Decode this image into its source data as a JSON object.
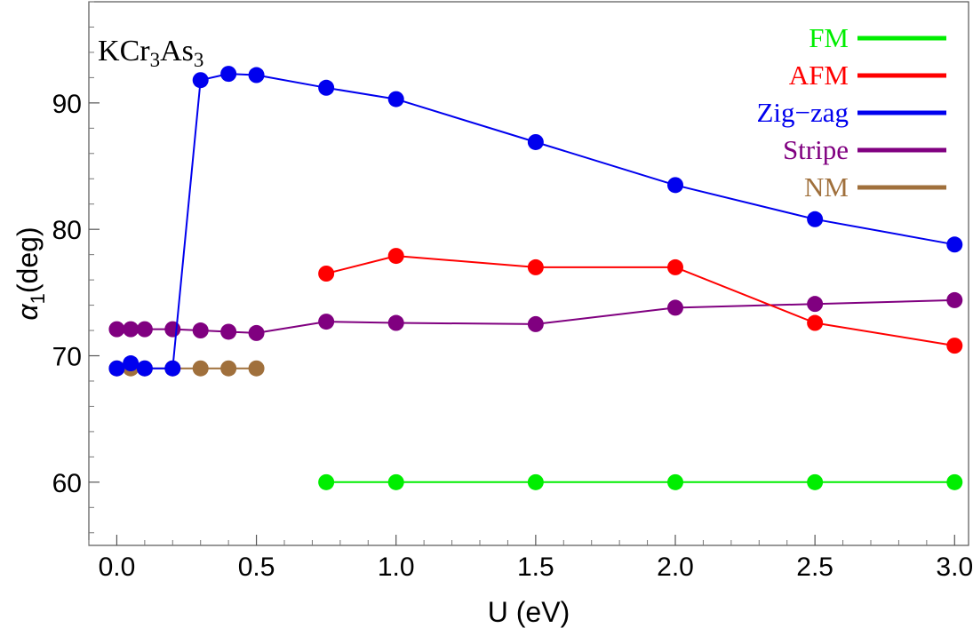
{
  "chart_data": {
    "type": "line",
    "title": "",
    "xlabel": "U (eV)",
    "ylabel": "α",
    "ylabel_sub": "1",
    "ylabel_unit": "(deg)",
    "xlim": [
      -0.1,
      3.05
    ],
    "ylim": [
      55,
      98
    ],
    "xticks": [
      0.0,
      0.5,
      1.0,
      1.5,
      2.0,
      2.5,
      3.0
    ],
    "xtick_labels": [
      "0.0",
      "0.5",
      "1.0",
      "1.5",
      "2.0",
      "2.5",
      "3.0"
    ],
    "yticks": [
      60,
      70,
      80,
      90
    ],
    "ytick_labels": [
      "60",
      "70",
      "80",
      "90"
    ],
    "annotation": {
      "parts": [
        "K",
        "Cr",
        "3",
        "As",
        "3"
      ]
    },
    "legend_position": "top-right",
    "series": [
      {
        "name": "FM",
        "color": "#00ee00",
        "x": [
          0.75,
          1.0,
          1.5,
          2.0,
          2.5,
          3.0
        ],
        "y": [
          60.0,
          60.0,
          60.0,
          60.0,
          60.0,
          60.0
        ]
      },
      {
        "name": "AFM",
        "color": "#ff0000",
        "x": [
          0.75,
          1.0,
          1.5,
          2.0,
          2.5,
          3.0
        ],
        "y": [
          76.5,
          77.9,
          77.0,
          77.0,
          72.6,
          70.8
        ]
      },
      {
        "name": "Zig−zag",
        "color": "#0000ee",
        "x": [
          0.0,
          0.05,
          0.1,
          0.2,
          0.3,
          0.4,
          0.5,
          0.75,
          1.0,
          1.5,
          2.0,
          2.5,
          3.0
        ],
        "y": [
          69.0,
          69.4,
          69.0,
          69.0,
          91.8,
          92.3,
          92.2,
          91.2,
          90.3,
          86.9,
          83.5,
          80.8,
          78.8
        ]
      },
      {
        "name": "Stripe",
        "color": "#800080",
        "x": [
          0.0,
          0.05,
          0.1,
          0.2,
          0.3,
          0.4,
          0.5,
          0.75,
          1.0,
          1.5,
          2.0,
          2.5,
          3.0
        ],
        "y": [
          72.1,
          72.1,
          72.1,
          72.1,
          72.0,
          71.9,
          71.8,
          72.7,
          72.6,
          72.5,
          73.8,
          74.1,
          74.4
        ]
      },
      {
        "name": "NM",
        "color": "#a0703c",
        "x": [
          0.0,
          0.05,
          0.1,
          0.2,
          0.3,
          0.4,
          0.5
        ],
        "y": [
          69.0,
          69.0,
          69.0,
          69.0,
          69.0,
          69.0,
          69.0
        ]
      }
    ]
  }
}
